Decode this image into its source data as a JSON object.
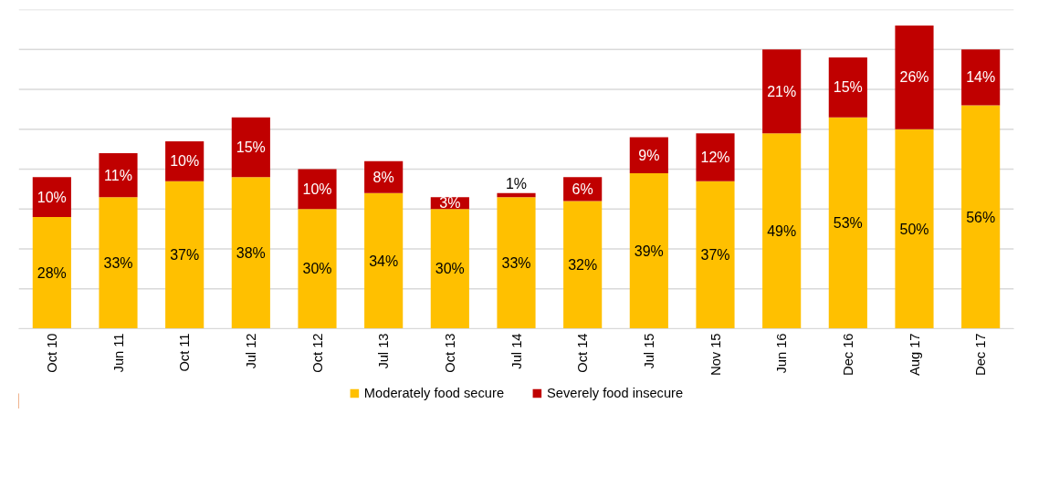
{
  "chart_data": {
    "type": "bar",
    "stacked": true,
    "categories": [
      "Oct 10",
      "Jun 11",
      "Oct 11",
      "Jul 12",
      "Oct 12",
      "Jul 13",
      "Oct 13",
      "Jul 14",
      "Oct 14",
      "Jul 15",
      "Nov 15",
      "Jun 16",
      "Dec 16",
      "Aug 17",
      "Dec 17"
    ],
    "series": [
      {
        "name": "Moderately food secure",
        "color": "#ffc000",
        "values": [
          28,
          33,
          37,
          38,
          30,
          34,
          30,
          33,
          32,
          39,
          37,
          49,
          53,
          50,
          56
        ],
        "value_labels": [
          "28%",
          "33%",
          "37%",
          "38%",
          "30%",
          "34%",
          "30%",
          "33%",
          "32%",
          "39%",
          "37%",
          "49%",
          "53%",
          "50%",
          "56%"
        ]
      },
      {
        "name": "Severely food insecure",
        "color": "#c00000",
        "values": [
          10,
          11,
          10,
          15,
          10,
          8,
          3,
          1,
          6,
          9,
          12,
          21,
          15,
          26,
          14
        ],
        "value_labels": [
          "10%",
          "11%",
          "10%",
          "15%",
          "10%",
          "8%",
          "3%",
          "1%",
          "6%",
          "9%",
          "12%",
          "21%",
          "15%",
          "26%",
          "14%"
        ]
      }
    ],
    "ylim": [
      0,
      80
    ],
    "yticks": [
      {
        "value": 0,
        "label": null
      },
      {
        "value": 10,
        "label": null
      },
      {
        "value": 20,
        "label": null
      },
      {
        "value": 30,
        "label": null
      },
      {
        "value": 40,
        "label": null
      },
      {
        "value": 50,
        "label": null
      },
      {
        "value": 60,
        "label": null
      },
      {
        "value": 70,
        "label": null
      },
      {
        "value": 80,
        "label": null
      }
    ],
    "tick_labels": "x",
    "grid": "y",
    "legend": "bottom"
  }
}
